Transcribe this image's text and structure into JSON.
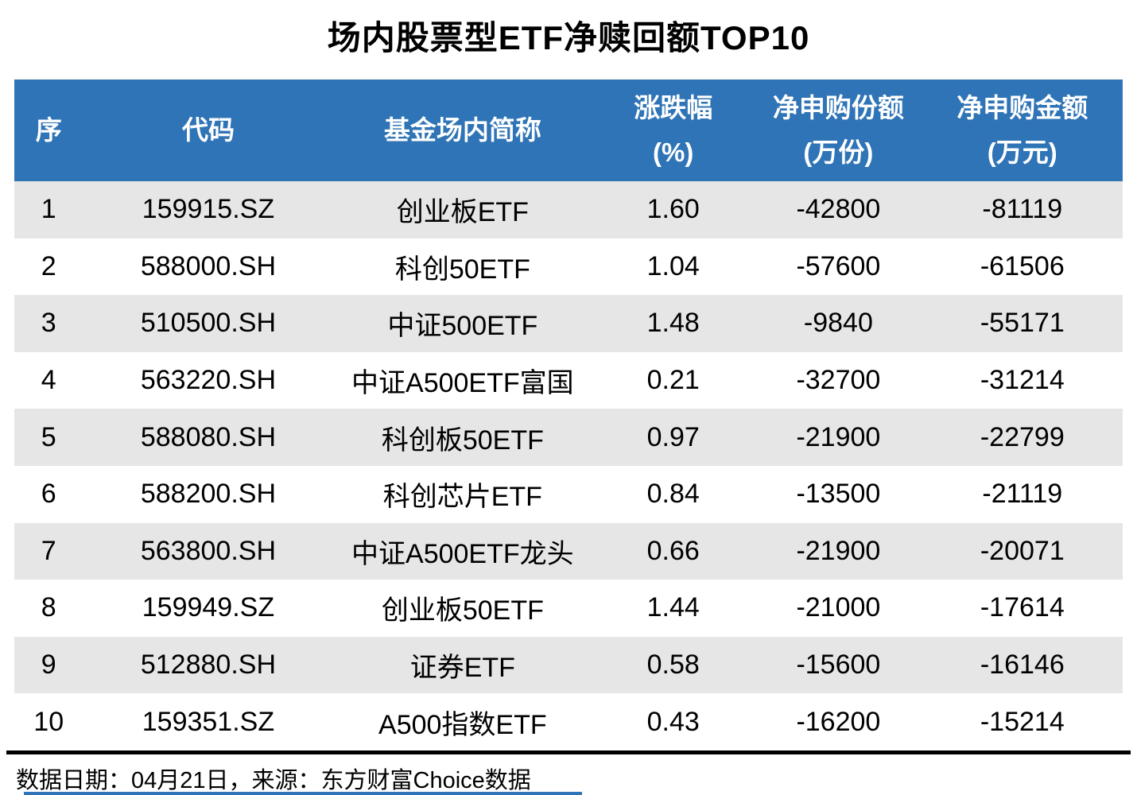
{
  "title": "场内股票型ETF净赎回额TOP10",
  "colors": {
    "header_bg": "#2F74B6",
    "header_text": "#FFFFFF",
    "stripe_bg": "#E6E6E6",
    "divider": "#000000",
    "bottom_line": "#2F74B6"
  },
  "table": {
    "columns": [
      {
        "key": "rank",
        "label": "序",
        "sub": ""
      },
      {
        "key": "code",
        "label": "代码",
        "sub": ""
      },
      {
        "key": "name",
        "label": "基金场内简称",
        "sub": ""
      },
      {
        "key": "chg",
        "label": "涨跌幅",
        "sub": "(%)"
      },
      {
        "key": "shares",
        "label": "净申购份额",
        "sub": "(万份)"
      },
      {
        "key": "amount",
        "label": "净申购金额",
        "sub": "(万元)"
      }
    ],
    "rows": [
      [
        "1",
        "159915.SZ",
        "创业板ETF",
        "1.60",
        "-42800",
        "-81119"
      ],
      [
        "2",
        "588000.SH",
        "科创50ETF",
        "1.04",
        "-57600",
        "-61506"
      ],
      [
        "3",
        "510500.SH",
        "中证500ETF",
        "1.48",
        "-9840",
        "-55171"
      ],
      [
        "4",
        "563220.SH",
        "中证A500ETF富国",
        "0.21",
        "-32700",
        "-31214"
      ],
      [
        "5",
        "588080.SH",
        "科创板50ETF",
        "0.97",
        "-21900",
        "-22799"
      ],
      [
        "6",
        "588200.SH",
        "科创芯片ETF",
        "0.84",
        "-13500",
        "-21119"
      ],
      [
        "7",
        "563800.SH",
        "中证A500ETF龙头",
        "0.66",
        "-21900",
        "-20071"
      ],
      [
        "8",
        "159949.SZ",
        "创业板50ETF",
        "1.44",
        "-21000",
        "-17614"
      ],
      [
        "9",
        "512880.SH",
        "证券ETF",
        "0.58",
        "-15600",
        "-16146"
      ],
      [
        "10",
        "159351.SZ",
        "A500指数ETF",
        "0.43",
        "-16200",
        "-15214"
      ]
    ]
  },
  "footer": {
    "text": "数据日期：04月21日，来源：东方财富Choice数据"
  },
  "chart_data": {
    "type": "table",
    "title": "场内股票型ETF净赎回额TOP10",
    "columns": [
      "序",
      "代码",
      "基金场内简称",
      "涨跌幅(%)",
      "净申购份额(万份)",
      "净申购金额(万元)"
    ],
    "rows": [
      [
        1,
        "159915.SZ",
        "创业板ETF",
        1.6,
        -42800,
        -81119
      ],
      [
        2,
        "588000.SH",
        "科创50ETF",
        1.04,
        -57600,
        -61506
      ],
      [
        3,
        "510500.SH",
        "中证500ETF",
        1.48,
        -9840,
        -55171
      ],
      [
        4,
        "563220.SH",
        "中证A500ETF富国",
        0.21,
        -32700,
        -31214
      ],
      [
        5,
        "588080.SH",
        "科创板50ETF",
        0.97,
        -21900,
        -22799
      ],
      [
        6,
        "588200.SH",
        "科创芯片ETF",
        0.84,
        -13500,
        -21119
      ],
      [
        7,
        "563800.SH",
        "中证A500ETF龙头",
        0.66,
        -21900,
        -20071
      ],
      [
        8,
        "159949.SZ",
        "创业板50ETF",
        1.44,
        -21000,
        -17614
      ],
      [
        9,
        "512880.SH",
        "证券ETF",
        0.58,
        -15600,
        -16146
      ],
      [
        10,
        "159351.SZ",
        "A500指数ETF",
        0.43,
        -16200,
        -15214
      ]
    ],
    "source_note": "数据日期：04月21日，来源：东方财富Choice数据"
  }
}
